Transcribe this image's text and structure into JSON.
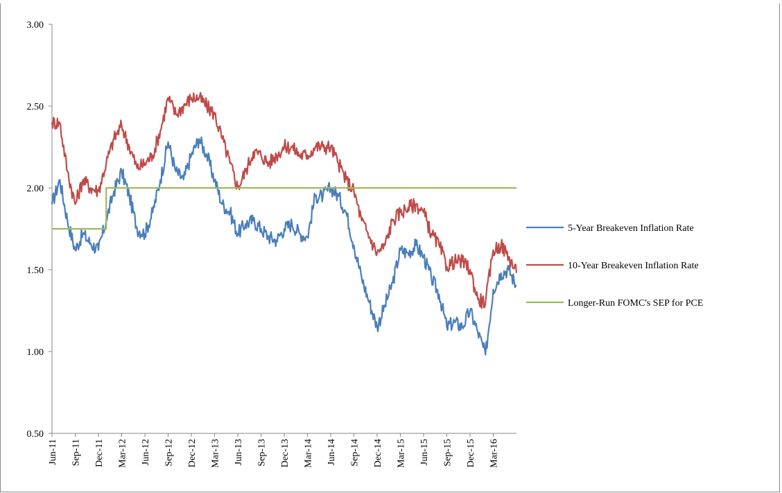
{
  "chart_data": {
    "type": "line",
    "title": "",
    "xlabel": "",
    "ylabel": "",
    "ylim": [
      0.5,
      3.0
    ],
    "yticks": [
      "0.50",
      "1.00",
      "1.50",
      "2.00",
      "2.50",
      "3.00"
    ],
    "xticks": [
      "Jun-11",
      "Sep-11",
      "Dec-11",
      "Mar-12",
      "Jun-12",
      "Sep-12",
      "Dec-12",
      "Mar-13",
      "Jun-13",
      "Sep-13",
      "Dec-13",
      "Mar-14",
      "Jun-14",
      "Sep-14",
      "Dec-14",
      "Mar-15",
      "Jun-15",
      "Sep-15",
      "Dec-15",
      "Mar-16"
    ],
    "grid": false,
    "legend_position": "right",
    "series": [
      {
        "name": "5-Year Breakeven Inflation Rate",
        "color": "#4a7ebb",
        "x": [
          "Jun-11",
          "Jul-11",
          "Aug-11",
          "Sep-11",
          "Oct-11",
          "Nov-11",
          "Dec-11",
          "Jan-12",
          "Feb-12",
          "Mar-12",
          "Apr-12",
          "May-12",
          "Jun-12",
          "Jul-12",
          "Aug-12",
          "Sep-12",
          "Oct-12",
          "Nov-12",
          "Dec-12",
          "Jan-13",
          "Feb-13",
          "Mar-13",
          "Apr-13",
          "May-13",
          "Jun-13",
          "Jul-13",
          "Aug-13",
          "Sep-13",
          "Oct-13",
          "Nov-13",
          "Dec-13",
          "Jan-14",
          "Feb-14",
          "Mar-14",
          "Apr-14",
          "May-14",
          "Jun-14",
          "Jul-14",
          "Aug-14",
          "Sep-14",
          "Oct-14",
          "Nov-14",
          "Dec-14",
          "Jan-15",
          "Feb-15",
          "Mar-15",
          "Apr-15",
          "May-15",
          "Jun-15",
          "Jul-15",
          "Aug-15",
          "Sep-15",
          "Oct-15",
          "Nov-15",
          "Dec-15",
          "Jan-16",
          "Feb-16",
          "Mar-16",
          "Apr-16",
          "May-16",
          "Jun-16"
        ],
        "values": [
          1.9,
          2.05,
          1.8,
          1.62,
          1.72,
          1.66,
          1.62,
          1.8,
          1.98,
          2.1,
          1.95,
          1.75,
          1.72,
          1.85,
          2.05,
          2.28,
          2.1,
          2.05,
          2.2,
          2.3,
          2.2,
          2.05,
          1.9,
          1.85,
          1.72,
          1.78,
          1.8,
          1.75,
          1.7,
          1.68,
          1.75,
          1.78,
          1.72,
          1.7,
          1.95,
          1.95,
          2.0,
          1.95,
          1.85,
          1.65,
          1.45,
          1.3,
          1.15,
          1.28,
          1.42,
          1.62,
          1.6,
          1.65,
          1.58,
          1.45,
          1.35,
          1.15,
          1.18,
          1.15,
          1.25,
          1.12,
          0.98,
          1.38,
          1.48,
          1.5,
          1.4
        ]
      },
      {
        "name": "10-Year Breakeven Inflation Rate",
        "color": "#be4b48",
        "x": [
          "Jun-11",
          "Jul-11",
          "Aug-11",
          "Sep-11",
          "Oct-11",
          "Nov-11",
          "Dec-11",
          "Jan-12",
          "Feb-12",
          "Mar-12",
          "Apr-12",
          "May-12",
          "Jun-12",
          "Jul-12",
          "Aug-12",
          "Sep-12",
          "Oct-12",
          "Nov-12",
          "Dec-12",
          "Jan-13",
          "Feb-13",
          "Mar-13",
          "Apr-13",
          "May-13",
          "Jun-13",
          "Jul-13",
          "Aug-13",
          "Sep-13",
          "Oct-13",
          "Nov-13",
          "Dec-13",
          "Jan-14",
          "Feb-14",
          "Mar-14",
          "Apr-14",
          "May-14",
          "Jun-14",
          "Jul-14",
          "Aug-14",
          "Sep-14",
          "Oct-14",
          "Nov-14",
          "Dec-14",
          "Jan-15",
          "Feb-15",
          "Mar-15",
          "Apr-15",
          "May-15",
          "Jun-15",
          "Jul-15",
          "Aug-15",
          "Sep-15",
          "Oct-15",
          "Nov-15",
          "Dec-15",
          "Jan-16",
          "Feb-16",
          "Mar-16",
          "Apr-16",
          "May-16",
          "Jun-16"
        ],
        "values": [
          2.4,
          2.4,
          2.1,
          1.9,
          2.05,
          2.0,
          1.98,
          2.15,
          2.3,
          2.38,
          2.25,
          2.12,
          2.15,
          2.2,
          2.35,
          2.55,
          2.45,
          2.5,
          2.55,
          2.55,
          2.5,
          2.45,
          2.3,
          2.15,
          2.0,
          2.1,
          2.22,
          2.2,
          2.15,
          2.2,
          2.25,
          2.25,
          2.2,
          2.2,
          2.25,
          2.25,
          2.25,
          2.15,
          2.05,
          1.98,
          1.8,
          1.7,
          1.6,
          1.65,
          1.8,
          1.85,
          1.88,
          1.9,
          1.85,
          1.72,
          1.65,
          1.52,
          1.55,
          1.55,
          1.5,
          1.32,
          1.3,
          1.62,
          1.65,
          1.58,
          1.48
        ]
      },
      {
        "name": "Longer-Run FOMC's SEP for PCE",
        "color": "#9bbb59",
        "x": [
          "Jun-11",
          "Jan-12",
          "Jan-12",
          "Jun-16"
        ],
        "values": [
          1.75,
          1.75,
          2.0,
          2.0
        ]
      }
    ]
  }
}
